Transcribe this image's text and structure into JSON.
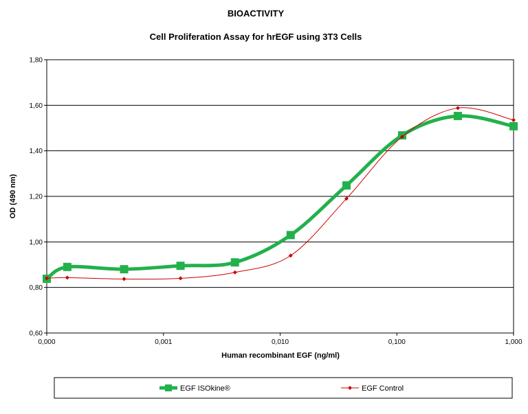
{
  "chart_data": {
    "type": "line",
    "title": "BIOACTIVITY",
    "subtitle": "Cell Proliferation Assay for hrEGF using 3T3 Cells",
    "xlabel": "Human recombinant EGF (ng/ml)",
    "ylabel": "OD (490 nm)",
    "x_scale": "log",
    "x_tick_labels": [
      "0,000",
      "0,001",
      "0,010",
      "0,100",
      "1,000"
    ],
    "y_tick_labels": [
      "0,60",
      "0,80",
      "1,00",
      "1,20",
      "1,40",
      "1,60",
      "1,80"
    ],
    "xlim": [
      0.0001,
      1
    ],
    "ylim": [
      0.6,
      1.8
    ],
    "grid": "horizontal",
    "legend_position": "bottom",
    "series": [
      {
        "name": "EGF ISOkine®",
        "color": "#22b14c",
        "marker": "square",
        "x": [
          0.0001,
          0.00015,
          0.00046,
          0.0014,
          0.0041,
          0.0123,
          0.037,
          0.111,
          0.333,
          1.0
        ],
        "y": [
          0.838,
          0.89,
          0.88,
          0.895,
          0.91,
          1.03,
          1.248,
          1.468,
          1.553,
          1.508
        ]
      },
      {
        "name": "EGF Control",
        "color": "#cc0000",
        "marker": "diamond",
        "x": [
          0.0001,
          0.00015,
          0.00046,
          0.0014,
          0.0041,
          0.0123,
          0.037,
          0.111,
          0.333,
          1.0
        ],
        "y": [
          0.84,
          0.843,
          0.837,
          0.84,
          0.866,
          0.94,
          1.19,
          1.462,
          1.588,
          1.535
        ]
      }
    ]
  }
}
